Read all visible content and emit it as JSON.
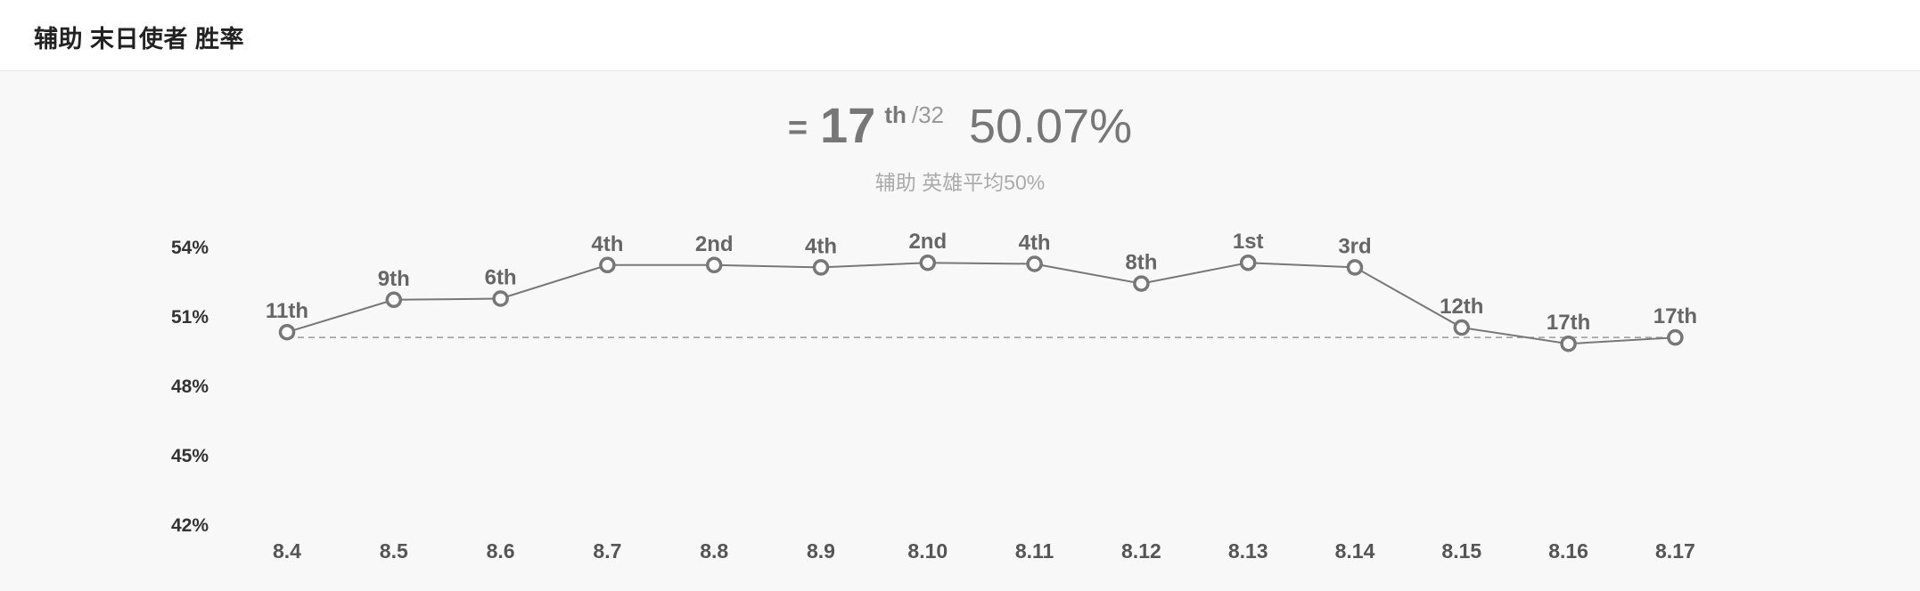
{
  "header": {
    "title": "辅助 末日使者 胜率"
  },
  "summary": {
    "rank_prefix": "=",
    "rank": "17",
    "rank_suffix": "th",
    "rank_total": "/32",
    "win_rate": "50.07%",
    "subtitle": "辅助 英雄平均50%"
  },
  "colors": {
    "line": "#777777",
    "marker_fill": "#ffffff",
    "average_line": "#999999",
    "background": "#f8f8f8"
  },
  "chart_data": {
    "type": "line",
    "categories": [
      "8.4",
      "8.5",
      "8.6",
      "8.7",
      "8.8",
      "8.9",
      "8.10",
      "8.11",
      "8.12",
      "8.13",
      "8.14",
      "8.15",
      "8.16",
      "8.17"
    ],
    "values": [
      50.3,
      51.7,
      51.75,
      53.2,
      53.2,
      53.1,
      53.3,
      53.25,
      52.4,
      53.3,
      53.1,
      50.5,
      49.8,
      50.07
    ],
    "point_labels": [
      "11th",
      "9th",
      "6th",
      "4th",
      "2nd",
      "4th",
      "2nd",
      "4th",
      "8th",
      "1st",
      "3rd",
      "12th",
      "17th",
      "17th"
    ],
    "reference_line": 50.07,
    "y_ticks": [
      "54%",
      "51%",
      "48%",
      "45%",
      "42%"
    ],
    "y_tick_values": [
      54,
      51,
      48,
      45,
      42
    ],
    "ylim": [
      42,
      54
    ],
    "title": "",
    "xlabel": "",
    "ylabel": "",
    "grid": false,
    "legend": "none"
  }
}
